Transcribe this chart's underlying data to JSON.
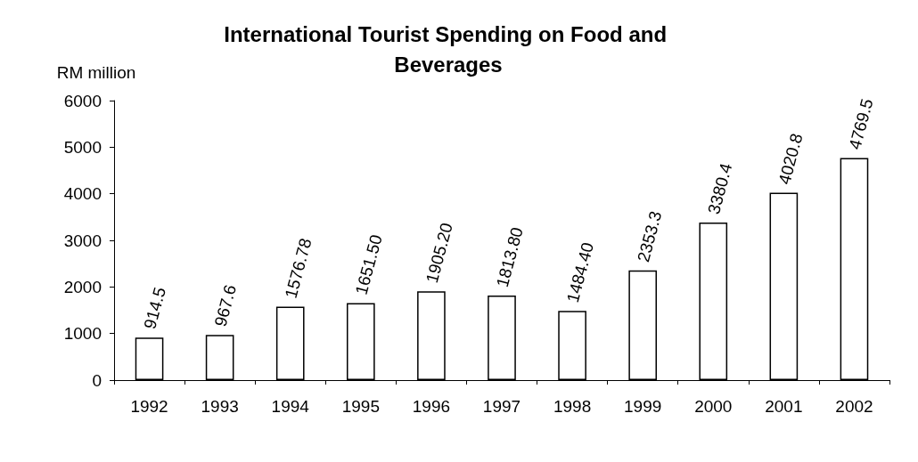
{
  "chart_data": {
    "type": "bar",
    "title": "International Tourist Spending on Food and Beverages",
    "ylabel": "RM million",
    "categories": [
      "1992",
      "1993",
      "1994",
      "1995",
      "1996",
      "1997",
      "1998",
      "1999",
      "2000",
      "2001",
      "2002"
    ],
    "values": [
      914.5,
      967.6,
      1576.78,
      1651.5,
      1905.2,
      1813.8,
      1484.4,
      2353.3,
      3380.4,
      4020.8,
      4769.5
    ],
    "value_labels": [
      "914.5",
      "967.6",
      "1576.78",
      "1651.50",
      "1905.20",
      "1813.80",
      "1484.40",
      "2353.3",
      "3380.4",
      "4020.8",
      "4769.5"
    ],
    "color": "#ffffff",
    "ylim": [
      0,
      6000
    ],
    "yticks": [
      0,
      1000,
      2000,
      3000,
      4000,
      5000,
      6000
    ]
  }
}
